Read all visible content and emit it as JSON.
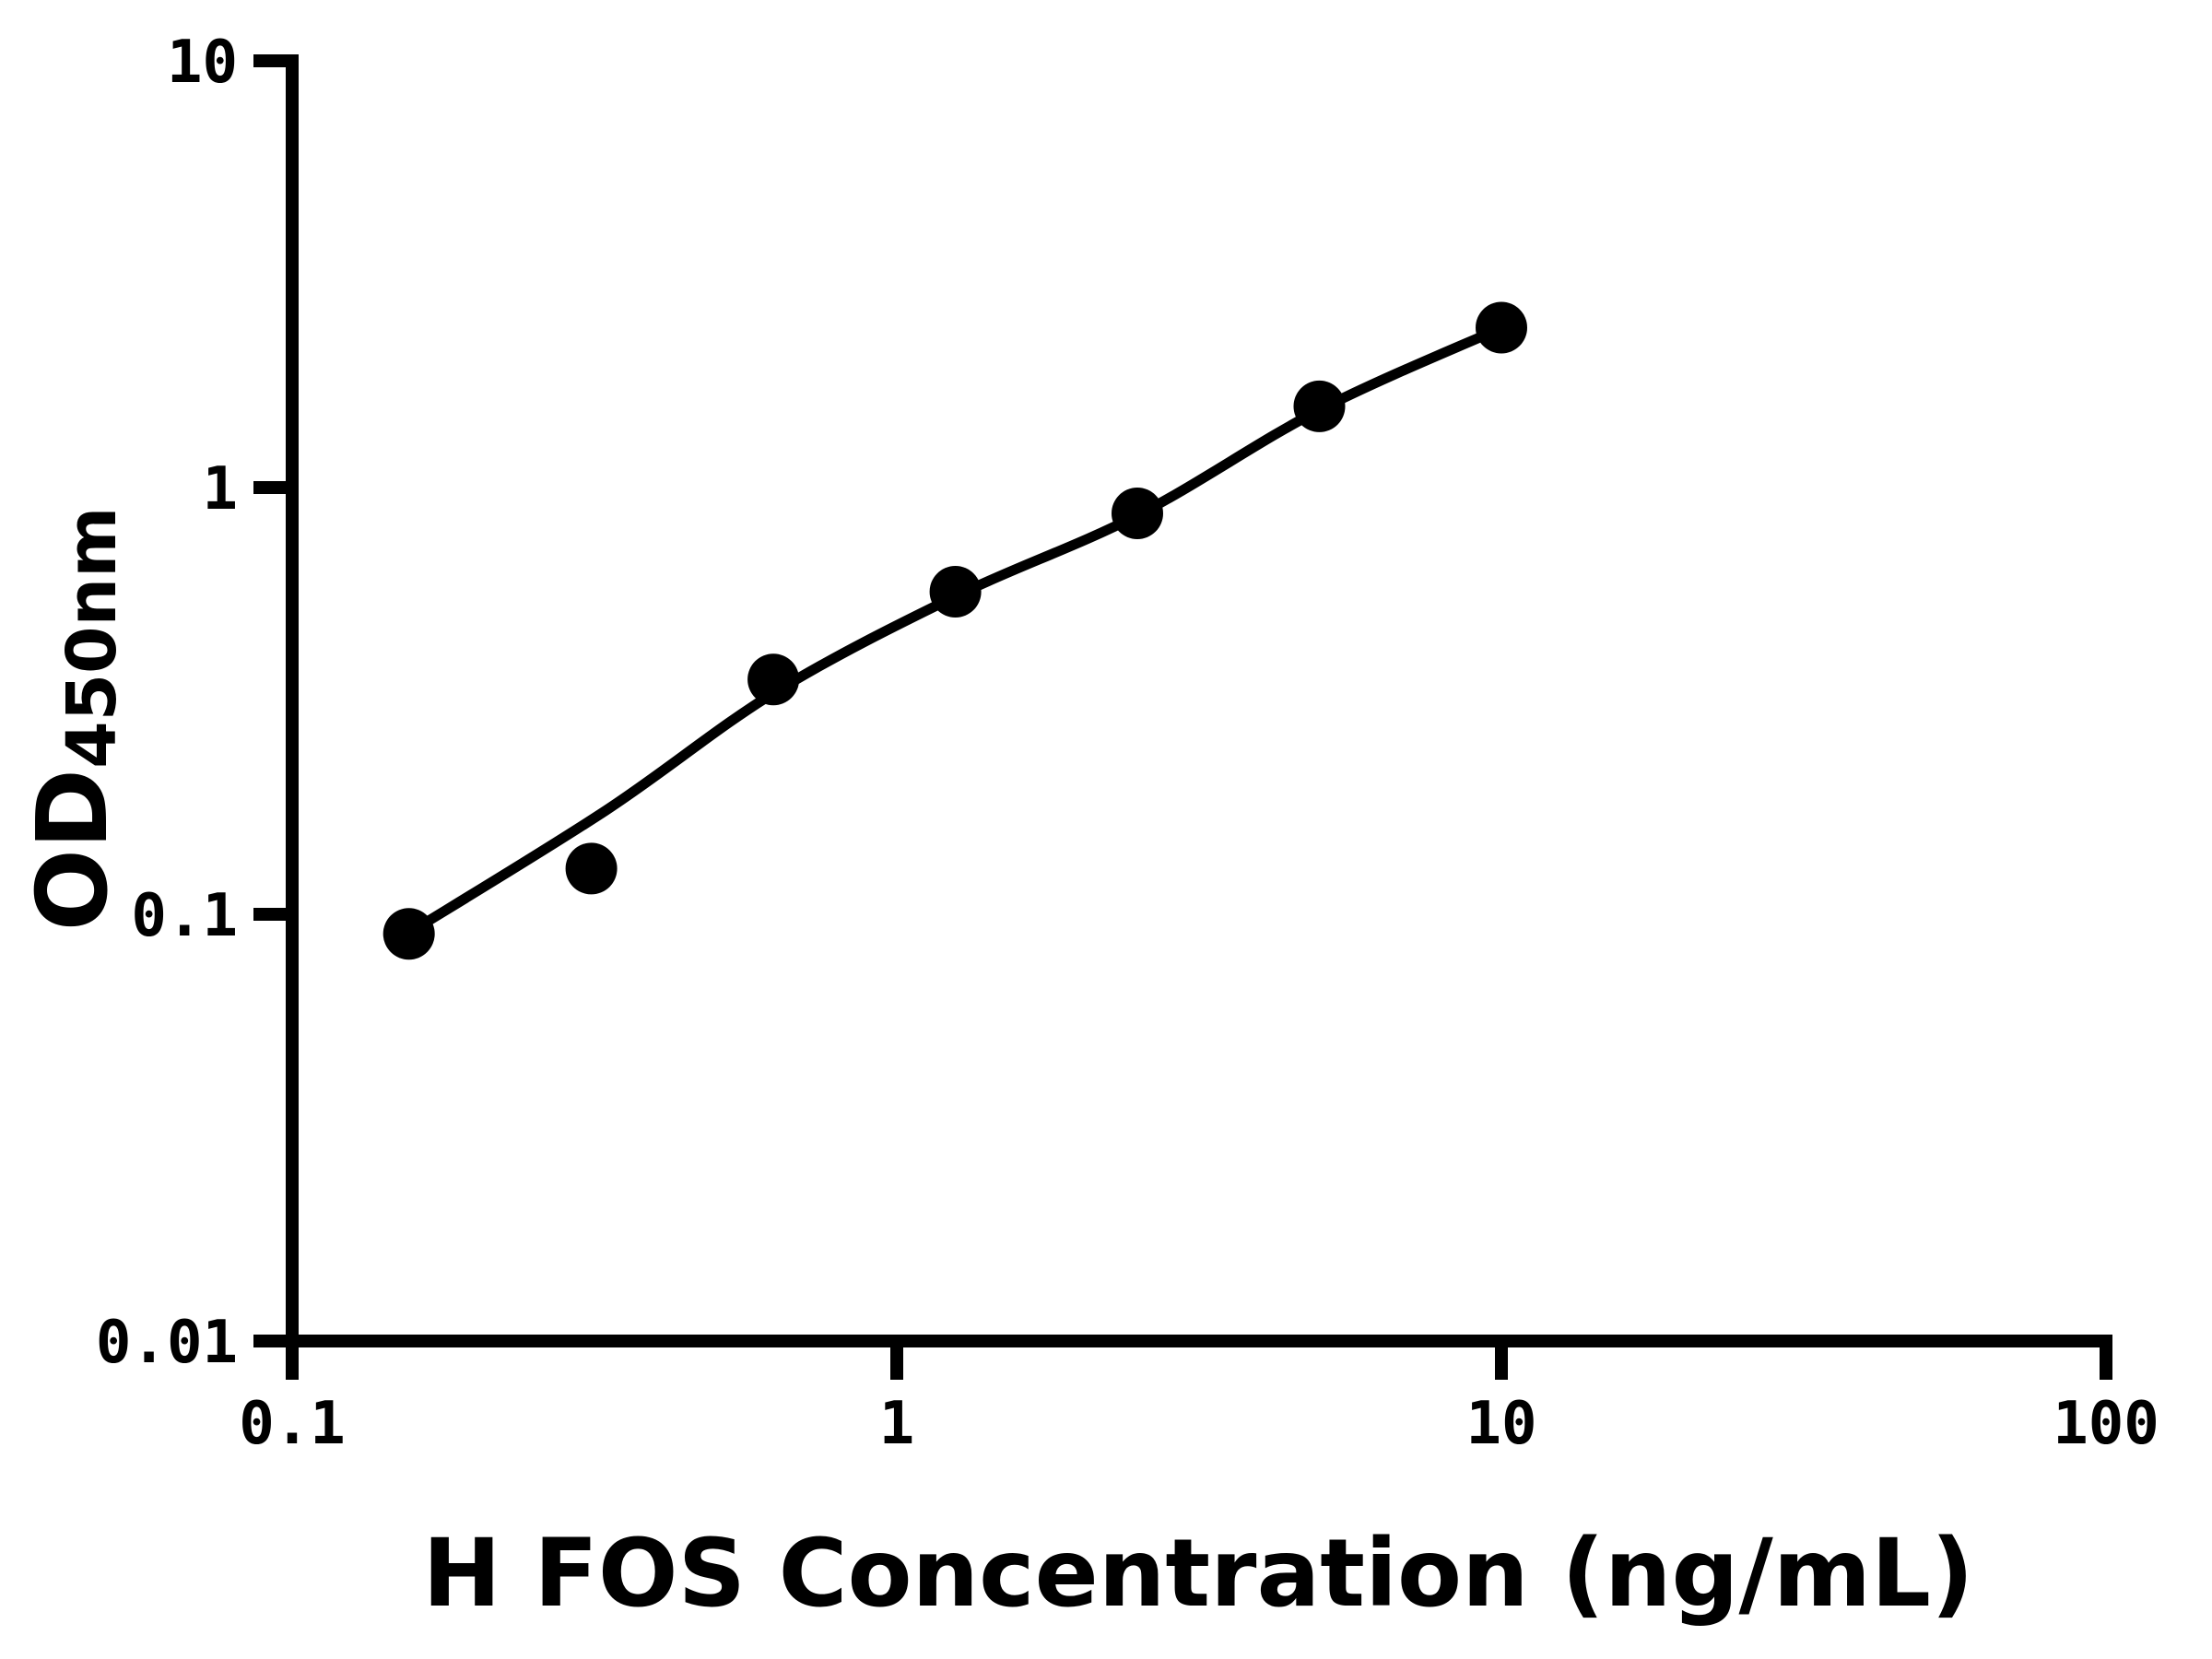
{
  "figure": {
    "background": "#ffffff",
    "ink": "#000000"
  },
  "chart_data": {
    "type": "scatter",
    "title": "",
    "xlabel": "H FOS Concentration (ng/mL)",
    "ylabel": "OD450nm",
    "ylabel_main": "OD",
    "ylabel_sub": "450nm",
    "x_scale": "log",
    "y_scale": "log",
    "xlim": [
      0.1,
      100
    ],
    "ylim": [
      0.01,
      10
    ],
    "grid": false,
    "legend": "none",
    "x_ticks": [
      {
        "value": 0.1,
        "label": "0.1"
      },
      {
        "value": 1,
        "label": "1"
      },
      {
        "value": 10,
        "label": "10"
      },
      {
        "value": 100,
        "label": "100"
      }
    ],
    "y_ticks": [
      {
        "value": 0.01,
        "label": "0.01"
      },
      {
        "value": 0.1,
        "label": "0.1"
      },
      {
        "value": 1,
        "label": "1"
      },
      {
        "value": 10,
        "label": "10"
      }
    ],
    "series": [
      {
        "name": "fitted-curve",
        "kind": "line",
        "color": "#000000",
        "stroke_width_px": 11,
        "points": [
          {
            "x": 0.156,
            "y": 0.0905
          },
          {
            "x": 0.33,
            "y": 0.175
          },
          {
            "x": 0.63,
            "y": 0.332
          },
          {
            "x": 1.25,
            "y": 0.556
          },
          {
            "x": 2.5,
            "y": 0.861
          },
          {
            "x": 5,
            "y": 1.52
          },
          {
            "x": 10,
            "y": 2.365
          }
        ]
      },
      {
        "name": "standard-points",
        "kind": "scatter",
        "color": "#000000",
        "marker_shape": "circle",
        "marker_radius_px": 28,
        "points": [
          {
            "x": 0.156,
            "y": 0.09
          },
          {
            "x": 0.3125,
            "y": 0.128
          },
          {
            "x": 0.625,
            "y": 0.355
          },
          {
            "x": 1.25,
            "y": 0.57
          },
          {
            "x": 2.5,
            "y": 0.87
          },
          {
            "x": 5,
            "y": 1.55
          },
          {
            "x": 10,
            "y": 2.37
          }
        ]
      }
    ]
  }
}
